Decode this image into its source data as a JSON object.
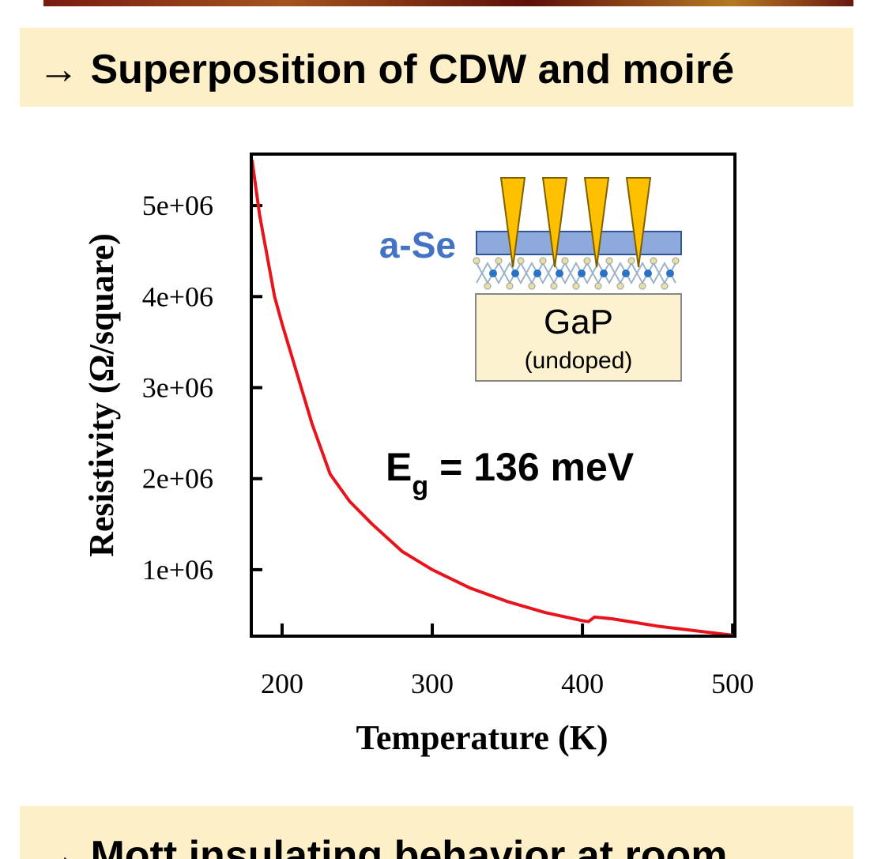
{
  "header": {
    "title": "→ Superposition of CDW and moiré"
  },
  "footer": {
    "title": "→ Mott insulating behavior at room"
  },
  "chart_data": {
    "type": "line",
    "x_label": "Temperature (K)",
    "y_label": "Resistivity (Ω/square)",
    "x": [
      180,
      185,
      190,
      195,
      200,
      210,
      220,
      232,
      245,
      260,
      280,
      300,
      325,
      350,
      375,
      400,
      404,
      408,
      420,
      450,
      475,
      500
    ],
    "values": [
      5500000,
      4900000,
      4450000,
      4000000,
      3700000,
      3150000,
      2600000,
      2050000,
      1750000,
      1500000,
      1200000,
      1000000,
      800000,
      650000,
      530000,
      440000,
      430000,
      480000,
      460000,
      380000,
      330000,
      280000
    ],
    "color": "#e8141c",
    "xlim": [
      179.5,
      501.5
    ],
    "ylim": [
      270000,
      5565000
    ],
    "xticks": [
      200,
      300,
      400,
      500
    ],
    "yticks": [
      {
        "value": 1000000,
        "label": "1e+06"
      },
      {
        "value": 2000000,
        "label": "2e+06"
      },
      {
        "value": 3000000,
        "label": "3e+06"
      },
      {
        "value": 4000000,
        "label": "4e+06"
      },
      {
        "value": 5000000,
        "label": "5e+06"
      }
    ],
    "annotation": {
      "main": "E",
      "subscript": "g",
      "rest": "= 136 meV"
    }
  },
  "inset": {
    "layer_label": "a-Se",
    "substrate": "GaP",
    "substrate_note": "(undoped)"
  }
}
